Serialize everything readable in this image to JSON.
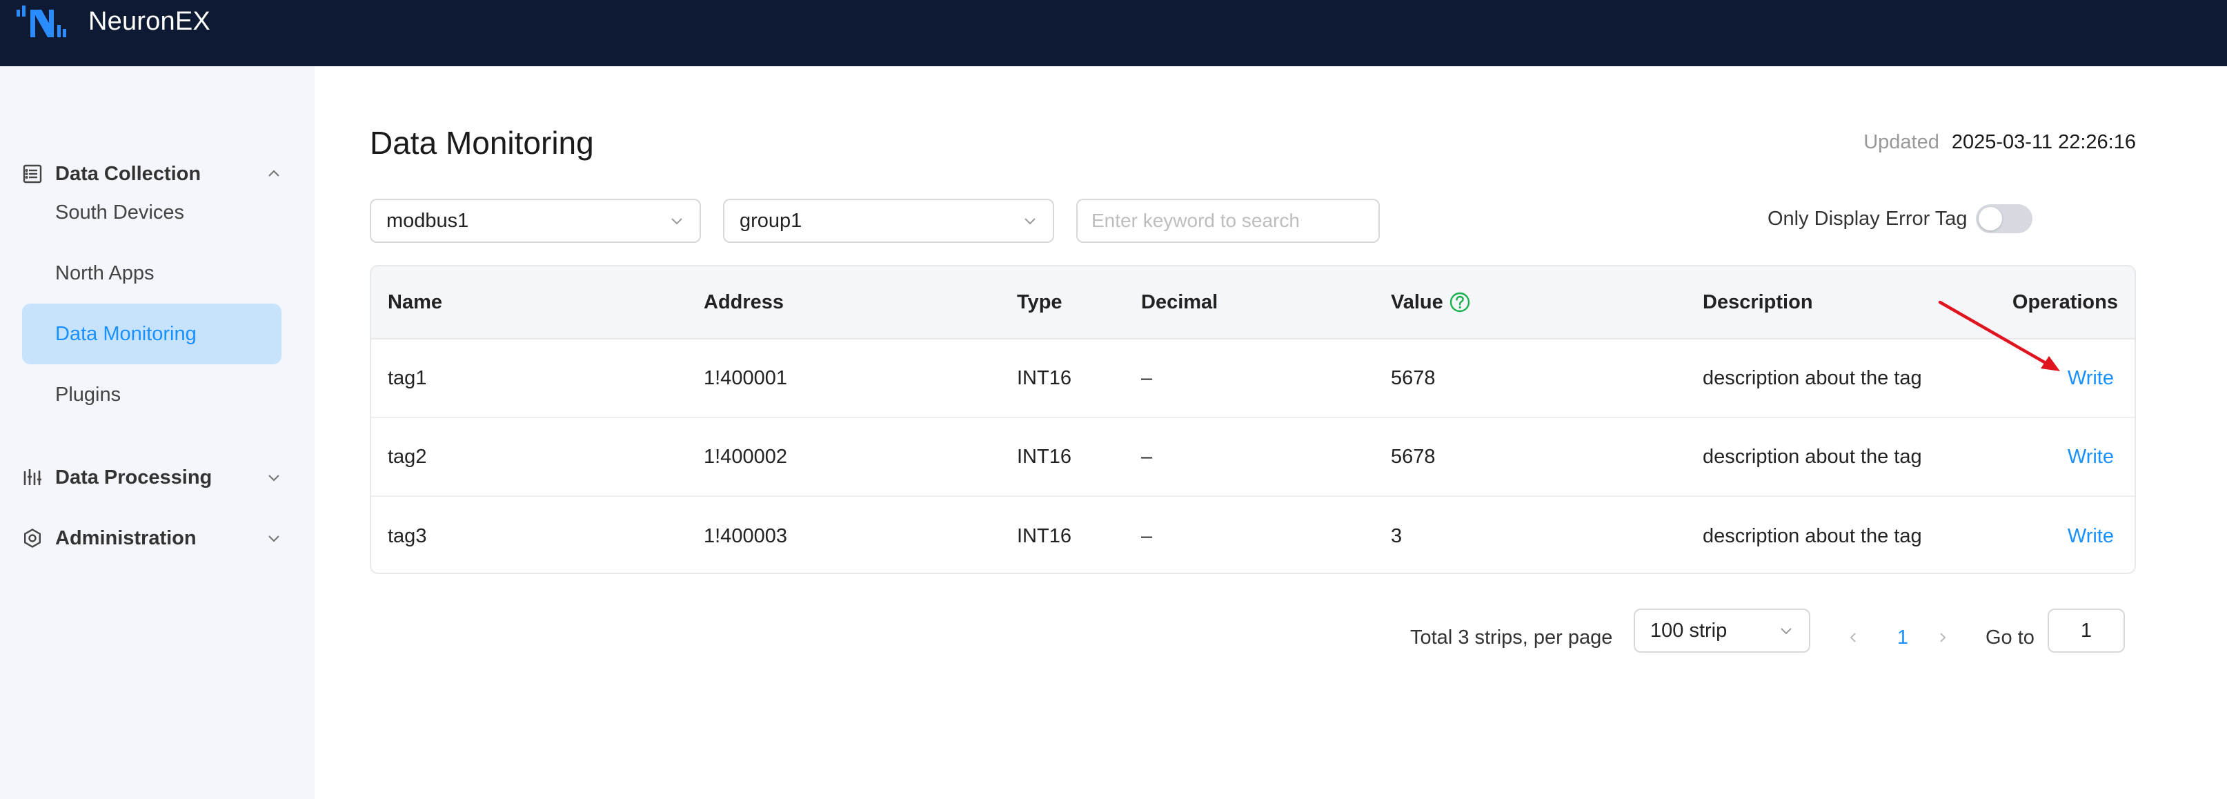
{
  "app": {
    "brand": "NeuronEX"
  },
  "sidebar": {
    "groups": [
      {
        "label": "Data Collection",
        "icon": "data-collection-icon",
        "expanded": true
      },
      {
        "label": "Data Processing",
        "icon": "data-processing-icon",
        "expanded": false
      },
      {
        "label": "Administration",
        "icon": "gear-icon",
        "expanded": false
      }
    ],
    "items": [
      {
        "label": "South Devices"
      },
      {
        "label": "North Apps"
      },
      {
        "label": "Data Monitoring",
        "active": true
      },
      {
        "label": "Plugins"
      }
    ]
  },
  "main": {
    "title": "Data Monitoring",
    "updated_label": "Updated",
    "updated_value": "2025-03-11 22:26:16",
    "filters": {
      "node": "modbus1",
      "group": "group1",
      "search_placeholder": "Enter keyword to search",
      "error_toggle_label": "Only Display Error Tag",
      "error_toggle_on": false
    },
    "table": {
      "columns": [
        "Name",
        "Address",
        "Type",
        "Decimal",
        "Value",
        "Description",
        "Operations"
      ],
      "rows": [
        {
          "name": "tag1",
          "address": "1!400001",
          "type": "INT16",
          "decimal": "–",
          "value": "5678",
          "description": "description about the tag",
          "operation": "Write"
        },
        {
          "name": "tag2",
          "address": "1!400002",
          "type": "INT16",
          "decimal": "–",
          "value": "5678",
          "description": "description about the tag",
          "operation": "Write"
        },
        {
          "name": "tag3",
          "address": "1!400003",
          "type": "INT16",
          "decimal": "–",
          "value": "3",
          "description": "description about the tag",
          "operation": "Write"
        }
      ]
    },
    "pagination": {
      "total_text": "Total 3 strips, per page",
      "page_size": "100 strip",
      "current_page": "1",
      "goto_label": "Go to",
      "goto_value": "1"
    }
  },
  "colors": {
    "topbar": "#0e1a33",
    "accent": "#1890ff",
    "active_bg": "#c6e3fb",
    "help_icon": "#19b04e",
    "annotation_arrow": "#e0141f"
  }
}
